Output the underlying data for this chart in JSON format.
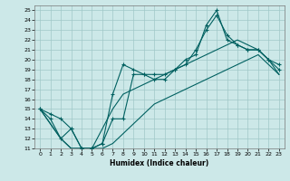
{
  "xlabel": "Humidex (Indice chaleur)",
  "xlim": [
    -0.5,
    23.5
  ],
  "ylim": [
    11,
    25.5
  ],
  "yticks": [
    11,
    12,
    13,
    14,
    15,
    16,
    17,
    18,
    19,
    20,
    21,
    22,
    23,
    24,
    25
  ],
  "xticks": [
    0,
    1,
    2,
    3,
    4,
    5,
    6,
    7,
    8,
    9,
    10,
    11,
    12,
    13,
    14,
    15,
    16,
    17,
    18,
    19,
    20,
    21,
    22,
    23
  ],
  "bg_color": "#cce8e8",
  "grid_color": "#a0c8c8",
  "line_color": "#006060",
  "line_jagged1": [
    15.0,
    14.5,
    14.0,
    13.0,
    11.0,
    11.0,
    11.5,
    16.5,
    19.5,
    19.0,
    18.5,
    18.5,
    18.5,
    19.0,
    19.5,
    21.0,
    23.0,
    24.5,
    22.5,
    21.5,
    21.0,
    21.0,
    20.0,
    19.5
  ],
  "line_jagged2": [
    15.0,
    14.0,
    12.0,
    13.0,
    11.0,
    11.0,
    11.5,
    14.0,
    14.0,
    18.5,
    18.5,
    18.0,
    18.0,
    19.0,
    20.0,
    20.5,
    23.5,
    25.0,
    22.0,
    21.5,
    21.0,
    21.0,
    20.0,
    19.0
  ],
  "line_upper": [
    15.0,
    13.5,
    12.0,
    11.0,
    11.0,
    11.0,
    13.0,
    15.0,
    16.5,
    17.0,
    17.5,
    18.0,
    18.5,
    19.0,
    19.5,
    20.0,
    20.5,
    21.0,
    21.5,
    22.0,
    21.5,
    21.0,
    20.0,
    18.5
  ],
  "line_lower": [
    15.0,
    13.5,
    12.0,
    11.0,
    11.0,
    11.0,
    11.0,
    11.5,
    12.5,
    13.5,
    14.5,
    15.5,
    16.0,
    16.5,
    17.0,
    17.5,
    18.0,
    18.5,
    19.0,
    19.5,
    20.0,
    20.5,
    19.5,
    18.5
  ]
}
